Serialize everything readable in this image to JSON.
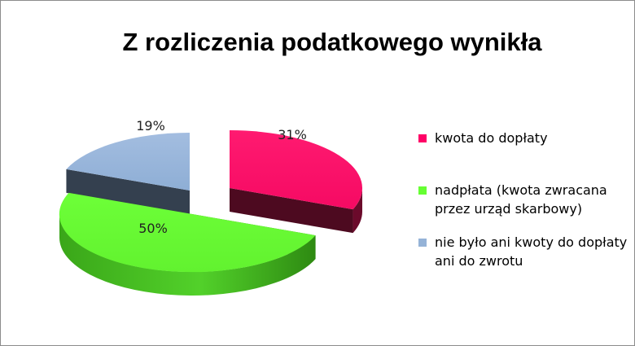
{
  "chart_data": {
    "type": "pie",
    "title": "Z rozliczenia podatkowego wynikła",
    "three_d": true,
    "exploded": true,
    "legend_position": "right",
    "slices": [
      {
        "label": "kwota do dopłaty",
        "value": 31,
        "display": "31%",
        "color": "#ff0066",
        "side_color": "#660022"
      },
      {
        "label": "nadpłata (kwota zwracana przez urząd skarbowy)",
        "value": 50,
        "display": "50%",
        "color": "#66ff33",
        "side_color": "#339915"
      },
      {
        "label": "nie było ani kwoty do dopłaty ani do zwrotu",
        "value": 19,
        "display": "19%",
        "color": "#95b3d7",
        "side_color": "#3b4a5c"
      }
    ]
  }
}
